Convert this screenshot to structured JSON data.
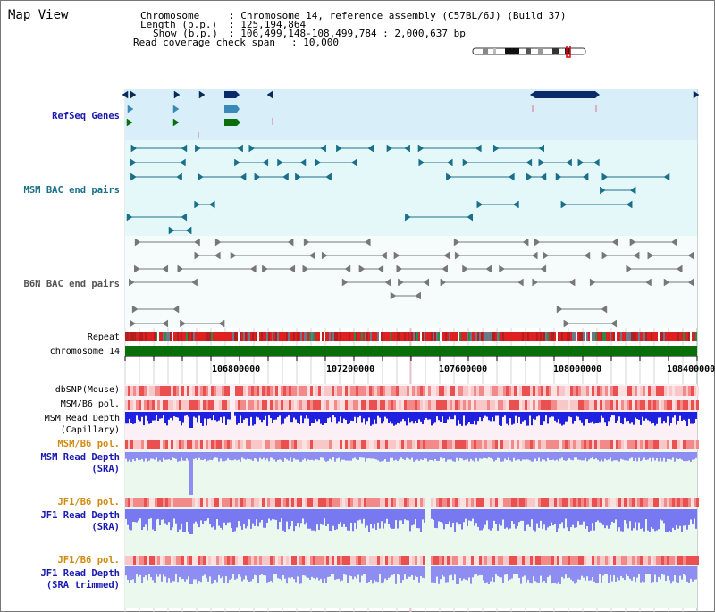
{
  "page": {
    "title": "Map View"
  },
  "header": {
    "chromosome_label": "Chromosome",
    "chromosome_value": ": Chromosome 14, reference assembly (C57BL/6J) (Build 37)",
    "length_label": "Length (b.p.)",
    "length_value": ": 125,194,864",
    "show_label": "Show (b.p.)",
    "show_value": ": 106,499,148-108,499,784 : 2,000,637 bp",
    "coverage_label": "Read coverage check span",
    "coverage_value": ": 10,000"
  },
  "tracks": {
    "refseq": "RefSeq Genes",
    "msm_bac": "MSM BAC end pairs",
    "b6n_bac": "B6N BAC end pairs",
    "repeat": "Repeat",
    "chromosome": "chromosome 14",
    "dbsnp": "dbSNP(Mouse)",
    "msm_b6_pol_1": "MSM/B6 pol.",
    "msm_depth_cap_1": "MSM Read Depth",
    "msm_depth_cap_2": "(Capillary)",
    "msm_b6_pol_2": "MSM/B6 pol.",
    "msm_depth_sra_1": "MSM Read Depth",
    "msm_depth_sra_2": "(SRA)",
    "jf1_b6_pol_1": "JF1/B6 pol.",
    "jf1_depth_sra_1": "JF1 Read Depth",
    "jf1_depth_sra_2": "(SRA)",
    "jf1_b6_pol_2": "JF1/B6 pol.",
    "jf1_depth_trim_1": "JF1 Read Depth",
    "jf1_depth_trim_2": "(SRA trimmed)"
  },
  "axis": {
    "ticks": [
      "106800000",
      "107200000",
      "107600000",
      "108000000",
      "108400000"
    ]
  },
  "colors": {
    "refseq_bg": "#d8eef8",
    "bac_bg": "#e4f8fa",
    "repeat_red": "#e02020",
    "chromosome_green": "#0a6e0a",
    "depth_blue": "#2020e0",
    "depth_lightblue": "#7878f0",
    "label_blue": "#1a1ab0",
    "label_orange": "#d08a10"
  }
}
